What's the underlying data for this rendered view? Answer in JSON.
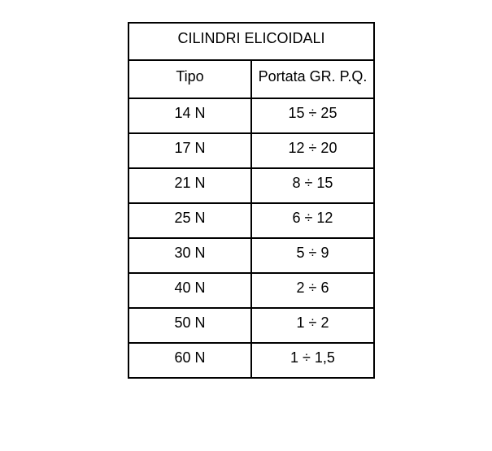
{
  "table": {
    "title": "CILINDRI ELICOIDALI",
    "headers": [
      "Tipo",
      "Portata GR. P.Q."
    ],
    "rows": [
      [
        "14 N",
        "15 ÷ 25"
      ],
      [
        "17 N",
        "12 ÷ 20"
      ],
      [
        "21 N",
        "8 ÷ 15"
      ],
      [
        "25 N",
        "6 ÷ 12"
      ],
      [
        "30 N",
        "5 ÷ 9"
      ],
      [
        "40 N",
        "2 ÷ 6"
      ],
      [
        "50 N",
        "1 ÷ 2"
      ],
      [
        "60 N",
        "1 ÷ 1,5"
      ]
    ]
  }
}
